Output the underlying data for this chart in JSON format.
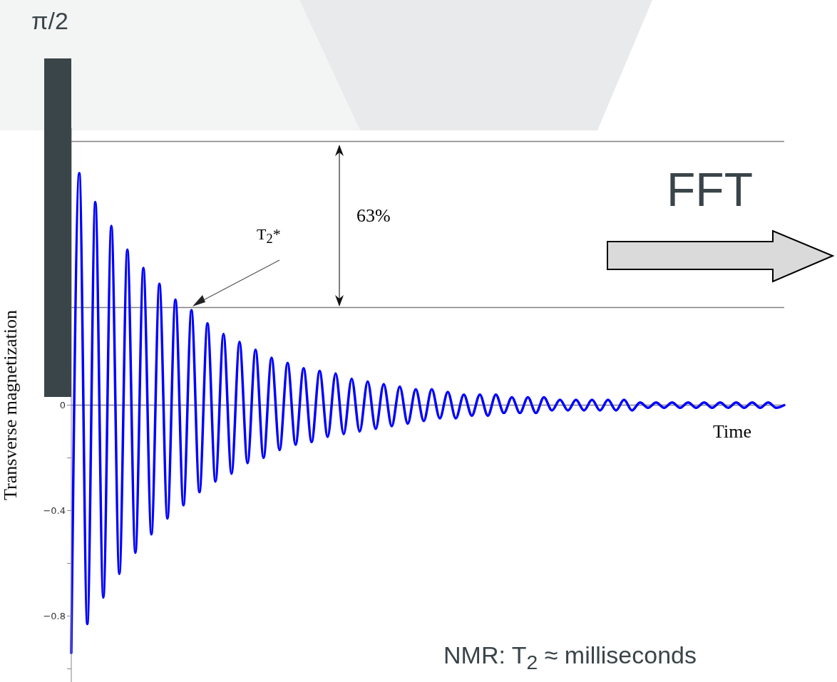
{
  "chart_data": {
    "type": "line",
    "title": "π/2",
    "subtitle": "FFT",
    "xlabel": "Time",
    "ylabel": "Transverse magnetization",
    "annotations": [
      "T$_{2}$*",
      "63%",
      "NMR: T$_{2}$ ≈ milliseconds"
    ],
    "categories": [
      null,
      null,
      null,
      null,
      null,
      null,
      null,
      null,
      null,
      null,
      null,
      null,
      null,
      null,
      null,
      null,
      null,
      null,
      null,
      null,
      null,
      null,
      null,
      null,
      null,
      null,
      null,
      null,
      null,
      null,
      null,
      null,
      null,
      null,
      null,
      null,
      null,
      null,
      null,
      null,
      null,
      null,
      null,
      null,
      null,
      null,
      null,
      null,
      null,
      null,
      null,
      null,
      null,
      null,
      null,
      null,
      null,
      null,
      null,
      null,
      null,
      null,
      null,
      null,
      null,
      null,
      null,
      null,
      null,
      null,
      null,
      null,
      null,
      null,
      null,
      null,
      null,
      null,
      null,
      null,
      null,
      null,
      null,
      null,
      null,
      null,
      null,
      null,
      null,
      null
    ],
    "series": [
      {
        "color": "#0000ff",
        "values": [
          -0.94,
          0.88,
          -0.83,
          0.77,
          -0.73,
          0.68,
          -0.64,
          0.59,
          -0.56,
          0.52,
          -0.49,
          0.46,
          -0.43,
          0.4,
          -0.38,
          0.36,
          -0.33,
          0.31,
          -0.29,
          0.27,
          -0.26,
          0.24,
          -0.22,
          0.21,
          -0.2,
          0.18,
          -0.17,
          0.16,
          -0.15,
          0.14,
          -0.14,
          0.13,
          -0.12,
          0.12,
          -0.11,
          0.1,
          -0.1,
          0.09,
          -0.09,
          0.08,
          -0.08,
          0.07,
          -0.07,
          0.06,
          -0.06,
          0.06,
          -0.05,
          0.05,
          -0.05,
          0.04,
          -0.04,
          0.04,
          -0.04,
          0.04,
          -0.03,
          0.03,
          -0.03,
          0.03,
          -0.03,
          0.03,
          -0.02,
          0.02,
          -0.02,
          0.02,
          -0.02,
          0.02,
          -0.02,
          0.02,
          -0.02,
          0.02,
          -0.02,
          0.01,
          -0.01,
          0.01,
          -0.01,
          0.01,
          -0.01,
          0.01,
          -0.01,
          0.01,
          -0.01,
          0.01,
          -0.01,
          0.01,
          -0.01,
          0.01,
          -0.01,
          0.01,
          -0.01,
          0
        ]
      }
    ],
    "ylim": [
      -1.05,
      1.05
    ],
    "yticks": [
      {
        "value": -1,
        "label": null
      },
      {
        "value": -0.8,
        "label": "−0.8"
      },
      {
        "value": -0.6,
        "label": null
      },
      {
        "value": -0.4,
        "label": "−0.4"
      },
      {
        "value": -0.2,
        "label": null
      },
      0
    ],
    "ref_lines": [
      {
        "axis": "y",
        "value": 0,
        "color": "#808080"
      },
      {
        "axis": "y",
        "value": 1,
        "color": "#808080"
      },
      {
        "axis": "y",
        "value": 0.37,
        "color": "#808080"
      }
    ],
    "tick_labels": "y",
    "grid": false,
    "marker": "none",
    "line_style": "solid"
  }
}
